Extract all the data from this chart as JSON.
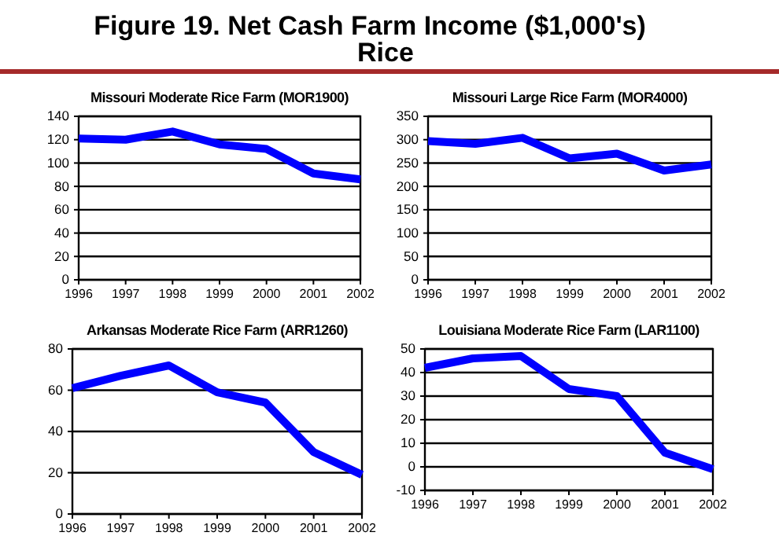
{
  "chart_data": [
    {
      "type": "line",
      "title": "Figure 19. Net Cash Farm Income ($1,000's)\nRice",
      "subtitle": "Missouri Moderate Rice Farm (MOR1900)",
      "categories": [
        "1996",
        "1997",
        "1998",
        "1999",
        "2000",
        "2001",
        "2002"
      ],
      "series": [
        {
          "color": "#0000ff",
          "values": [
            121,
            120,
            127,
            116,
            112,
            91,
            86
          ]
        }
      ],
      "ylim": [
        0,
        140
      ],
      "yticks": [
        0,
        20,
        40,
        60,
        80,
        100,
        120,
        140
      ],
      "grid": "y",
      "marker": "none",
      "line_style": "solid"
    },
    {
      "type": "line",
      "subtitle": "Missouri Large Rice Farm (MOR4000)",
      "categories": [
        "1996",
        "1997",
        "1998",
        "1999",
        "2000",
        "2001",
        "2002"
      ],
      "series": [
        {
          "color": "#0000ff",
          "values": [
            297,
            291,
            304,
            260,
            270,
            234,
            247
          ]
        }
      ],
      "ylim": [
        0,
        350
      ],
      "yticks": [
        0,
        50,
        100,
        150,
        200,
        250,
        300,
        350
      ],
      "grid": "y",
      "marker": "none",
      "line_style": "solid"
    },
    {
      "type": "line",
      "subtitle": "Arkansas Moderate Rice Farm (ARR1260)",
      "categories": [
        "1996",
        "1997",
        "1998",
        "1999",
        "2000",
        "2001",
        "2002"
      ],
      "series": [
        {
          "color": "#0000ff",
          "values": [
            61,
            67,
            72,
            59,
            54,
            30,
            19
          ]
        }
      ],
      "ylim": [
        0,
        80
      ],
      "yticks": [
        0,
        20,
        40,
        60,
        80
      ],
      "grid": "y",
      "marker": "none",
      "line_style": "solid"
    },
    {
      "type": "line",
      "subtitle": "Louisiana Moderate Rice Farm (LAR1100)",
      "categories": [
        "1996",
        "1997",
        "1998",
        "1999",
        "2000",
        "2001",
        "2002"
      ],
      "series": [
        {
          "color": "#0000ff",
          "values": [
            42,
            46,
            47,
            33,
            30,
            6,
            -1
          ]
        }
      ],
      "ylim": [
        -10,
        50
      ],
      "yticks": [
        -10,
        0,
        10,
        20,
        30,
        40,
        50
      ],
      "grid": "y",
      "marker": "none",
      "line_style": "solid"
    }
  ]
}
